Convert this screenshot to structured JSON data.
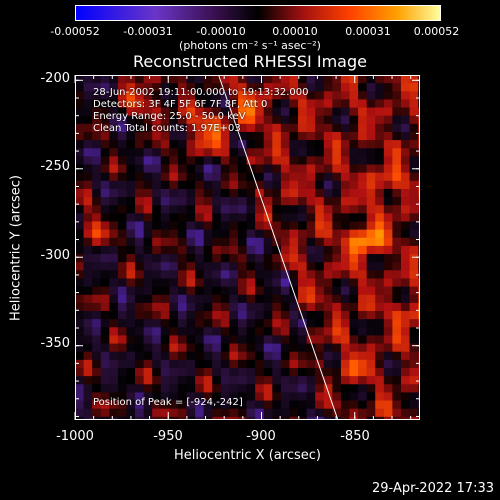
{
  "colorbar": {
    "tick_labels": [
      "-0.00052",
      "-0.00031",
      "-0.00010",
      "0.00010",
      "0.00031",
      "0.00052"
    ],
    "unit": "(photons cm⁻² s⁻¹ asec⁻²)"
  },
  "title": "Reconstructed RHESSI Image",
  "overlay": {
    "time_range": "28-Jun-2002 19:11:00.000 to 19:13:32.000",
    "detectors": "Detectors: 3F 4F 5F 6F 7F 8F, Att 0",
    "energy": "Energy Range: 25.0 - 50.0 keV",
    "method": "Clean    Total counts: 1.97E+03",
    "peak": "Position of Peak = [-924,-242]"
  },
  "footer_date": "29-Apr-2022 17:33",
  "chart_data": {
    "type": "heatmap",
    "title": "Reconstructed RHESSI Image",
    "xlabel": "Heliocentric X (arcsec)",
    "ylabel": "Heliocentric Y (arcsec)",
    "xlim": [
      -1000,
      -815
    ],
    "ylim": [
      -392,
      -197
    ],
    "x_ticks": [
      -1000,
      -950,
      -900,
      -850
    ],
    "y_ticks": [
      -200,
      -250,
      -300,
      -350
    ],
    "color_range": [
      -0.00052,
      0.00052
    ],
    "colormap": [
      "#0000ff",
      "#5a2ad0",
      "#2a0f3a",
      "#000000",
      "#b01010",
      "#ff5000",
      "#ffb000",
      "#ffff80"
    ],
    "limb_line": {
      "x": [
        -923,
        -859
      ],
      "y": [
        -197,
        -392
      ]
    },
    "peak_position": [
      -924,
      -242
    ]
  }
}
